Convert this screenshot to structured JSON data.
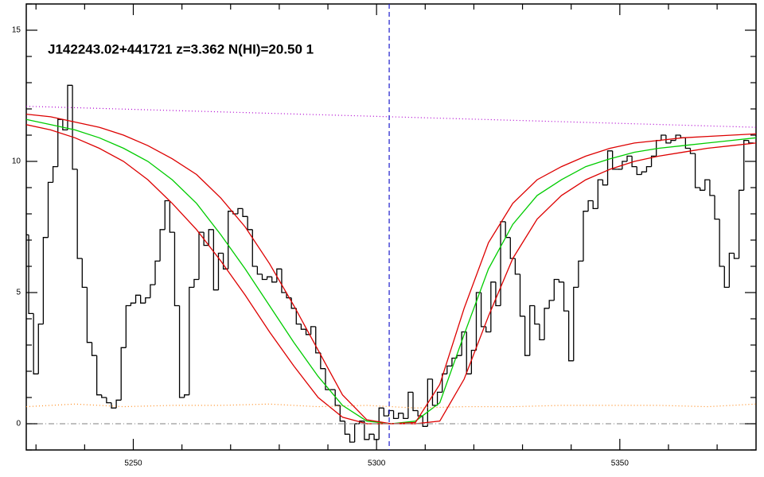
{
  "chart_data": {
    "type": "line",
    "title": "J142243.02+441721 z=3.362 N(HI)=20.50 1",
    "xlim": [
      5228,
      5378
    ],
    "ylim": [
      -1,
      16
    ],
    "xticks": [
      5250,
      5300,
      5350
    ],
    "yticks": [
      0,
      5,
      10,
      15
    ],
    "xminorticks": [
      5230,
      5240,
      5260,
      5270,
      5280,
      5290,
      5310,
      5320,
      5330,
      5340,
      5360,
      5370
    ],
    "yminorticks": [
      -1,
      1,
      2,
      3,
      4,
      6,
      7,
      8,
      9,
      11,
      12,
      13,
      14,
      16
    ],
    "vline": {
      "x": 5302.6,
      "color": "#1a1acc"
    },
    "series": [
      {
        "style": "step",
        "color": "#000000",
        "x": [
          5228,
          5229,
          5230,
          5231,
          5232,
          5233,
          5234,
          5235,
          5236,
          5237,
          5238,
          5239,
          5240,
          5241,
          5242,
          5243,
          5244,
          5245,
          5246,
          5247,
          5248,
          5249,
          5250,
          5251,
          5252,
          5253,
          5254,
          5255,
          5256,
          5257,
          5258,
          5259,
          5260,
          5261,
          5262,
          5263,
          5264,
          5265,
          5266,
          5267,
          5268,
          5269,
          5270,
          5271,
          5272,
          5273,
          5274,
          5275,
          5276,
          5277,
          5278,
          5279,
          5280,
          5281,
          5282,
          5283,
          5284,
          5285,
          5286,
          5287,
          5288,
          5289,
          5290,
          5291,
          5292,
          5293,
          5294,
          5295,
          5296,
          5297,
          5298,
          5299,
          5300,
          5301,
          5302,
          5303,
          5304,
          5305,
          5306,
          5307,
          5308,
          5309,
          5310,
          5311,
          5312,
          5313,
          5314,
          5315,
          5316,
          5317,
          5318,
          5319,
          5320,
          5321,
          5322,
          5323,
          5324,
          5325,
          5326,
          5327,
          5328,
          5329,
          5330,
          5331,
          5332,
          5333,
          5334,
          5335,
          5336,
          5337,
          5338,
          5339,
          5340,
          5341,
          5342,
          5343,
          5344,
          5345,
          5346,
          5347,
          5348,
          5349,
          5350,
          5351,
          5352,
          5353,
          5354,
          5355,
          5356,
          5357,
          5358,
          5359,
          5360,
          5361,
          5362,
          5363,
          5364,
          5365,
          5366,
          5367,
          5368,
          5369,
          5370,
          5371,
          5372,
          5373,
          5374,
          5375,
          5376,
          5377
        ],
        "values": [
          7.2,
          4.2,
          1.9,
          3.8,
          7.1,
          9.2,
          9.8,
          11.6,
          11.2,
          12.9,
          9.7,
          6.3,
          5.2,
          3.1,
          2.6,
          1.1,
          1.0,
          0.8,
          0.6,
          0.9,
          2.9,
          4.5,
          4.6,
          4.9,
          4.6,
          4.8,
          5.3,
          6.2,
          7.4,
          8.5,
          7.3,
          4.5,
          1.0,
          1.1,
          5.2,
          5.5,
          7.3,
          6.8,
          7.4,
          5.1,
          6.5,
          5.9,
          8.1,
          8.0,
          8.2,
          7.9,
          7.4,
          6.0,
          5.7,
          5.5,
          5.6,
          5.4,
          5.9,
          5.0,
          4.8,
          4.4,
          3.8,
          3.6,
          3.4,
          3.7,
          2.7,
          2.1,
          1.3,
          1.3,
          0.7,
          0.1,
          -0.4,
          -0.7,
          0.0,
          0.1,
          -0.6,
          -0.4,
          -0.6,
          0.6,
          0.3,
          0.5,
          0.2,
          0.4,
          0.2,
          1.2,
          0.5,
          0.3,
          -0.1,
          1.7,
          0.7,
          1.2,
          1.9,
          2.2,
          2.5,
          2.6,
          3.5,
          1.9,
          2.8,
          5.0,
          3.7,
          3.5,
          5.4,
          4.5,
          7.7,
          7.1,
          6.3,
          5.7,
          4.1,
          2.6,
          4.5,
          3.8,
          3.2,
          4.4,
          4.7,
          5.5,
          5.4,
          4.3,
          2.4,
          5.2,
          6.2,
          8.1,
          8.5,
          8.2,
          9.3,
          9.1,
          10.4,
          9.7,
          9.7,
          10.0,
          10.2,
          9.8,
          9.5,
          9.6,
          9.8,
          10.2,
          10.8,
          11.0,
          10.7,
          10.8,
          11.0,
          10.9,
          10.5,
          10.3,
          9.0,
          8.9,
          9.3,
          8.7,
          7.8,
          6.0,
          5.2,
          6.5,
          6.3,
          8.9,
          10.8,
          10.7
        ]
      },
      {
        "style": "line",
        "color": "#00cc00",
        "x": [
          5228,
          5233,
          5238,
          5243,
          5248,
          5253,
          5258,
          5263,
          5268,
          5273,
          5278,
          5283,
          5288,
          5293,
          5298,
          5303,
          5308,
          5313,
          5318,
          5323,
          5328,
          5333,
          5338,
          5343,
          5348,
          5353,
          5358,
          5363,
          5368,
          5373,
          5378
        ],
        "values": [
          11.6,
          11.4,
          11.2,
          10.9,
          10.5,
          10.0,
          9.3,
          8.4,
          7.2,
          5.9,
          4.5,
          3.1,
          1.8,
          0.7,
          0.1,
          0,
          0.1,
          0.8,
          3.4,
          5.9,
          7.6,
          8.7,
          9.3,
          9.8,
          10.1,
          10.35,
          10.5,
          10.6,
          10.7,
          10.8,
          10.9
        ]
      },
      {
        "style": "line",
        "color": "#dd0000",
        "x": [
          5228,
          5233,
          5238,
          5243,
          5248,
          5253,
          5258,
          5263,
          5268,
          5273,
          5278,
          5283,
          5288,
          5293,
          5298,
          5303,
          5308,
          5313,
          5318,
          5323,
          5328,
          5333,
          5338,
          5343,
          5348,
          5353,
          5358,
          5363,
          5368,
          5373,
          5378
        ],
        "values": [
          11.8,
          11.7,
          11.5,
          11.3,
          11.0,
          10.6,
          10.1,
          9.5,
          8.6,
          7.5,
          6.1,
          4.5,
          2.8,
          1.1,
          0.15,
          0,
          0.05,
          1.5,
          4.4,
          6.9,
          8.4,
          9.3,
          9.8,
          10.2,
          10.5,
          10.7,
          10.8,
          10.9,
          10.95,
          11.0,
          11.05
        ]
      },
      {
        "style": "line",
        "color": "#dd0000",
        "x": [
          5228,
          5233,
          5238,
          5243,
          5248,
          5253,
          5258,
          5263,
          5268,
          5273,
          5278,
          5283,
          5288,
          5293,
          5298,
          5303,
          5308,
          5313,
          5318,
          5323,
          5328,
          5333,
          5338,
          5343,
          5348,
          5353,
          5358,
          5363,
          5368,
          5373,
          5378
        ],
        "values": [
          11.4,
          11.2,
          10.9,
          10.5,
          10.0,
          9.3,
          8.4,
          7.4,
          6.2,
          4.9,
          3.5,
          2.2,
          1.0,
          0.25,
          0,
          0,
          0,
          0.1,
          1.7,
          4.1,
          6.3,
          7.8,
          8.7,
          9.3,
          9.7,
          10.0,
          10.2,
          10.35,
          10.5,
          10.6,
          10.7
        ]
      },
      {
        "style": "dotted",
        "color": "#b000d0",
        "x": [
          5228,
          5378
        ],
        "values": [
          12.1,
          11.3
        ]
      },
      {
        "style": "dotted",
        "color": "#ff8a1a",
        "x": [
          5228,
          5238,
          5248,
          5258,
          5268,
          5278,
          5288,
          5298,
          5308,
          5318,
          5328,
          5338,
          5348,
          5358,
          5368,
          5378
        ],
        "values": [
          0.65,
          0.75,
          0.65,
          0.7,
          0.7,
          0.75,
          0.65,
          0.7,
          0.6,
          0.65,
          0.65,
          0.7,
          0.7,
          0.7,
          0.65,
          0.75
        ]
      },
      {
        "style": "dashdot",
        "color": "#999999",
        "x": [
          5228,
          5378
        ],
        "values": [
          0,
          0
        ]
      }
    ]
  }
}
